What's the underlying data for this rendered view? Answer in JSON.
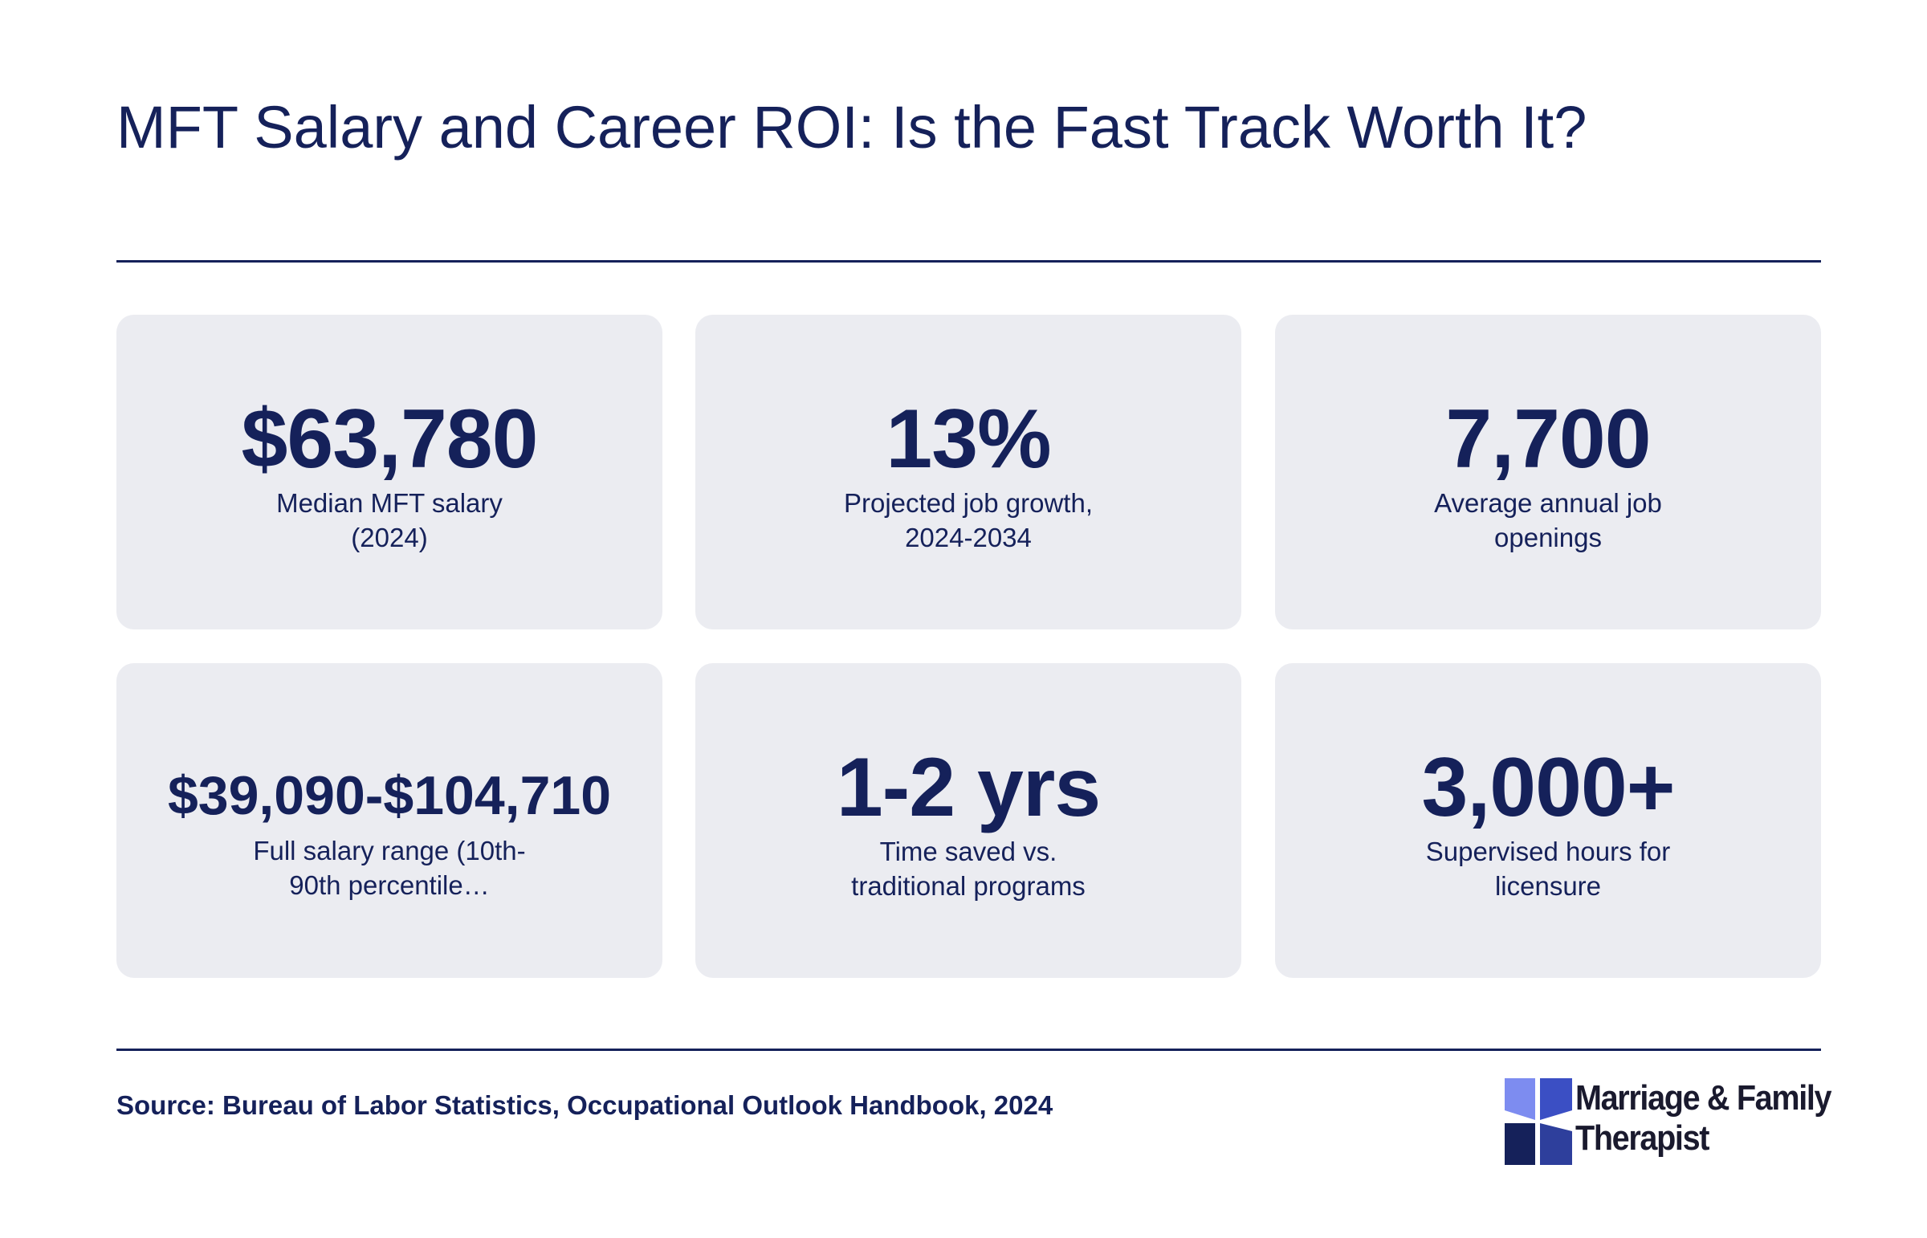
{
  "header": {
    "title": "MFT Salary and Career ROI: Is the Fast Track Worth It?"
  },
  "cards": [
    {
      "value": "$63,780",
      "label": "Median MFT salary (2024)"
    },
    {
      "value": "13%",
      "label": "Projected job growth, 2024-2034"
    },
    {
      "value": "7,700",
      "label": "Average annual job openings"
    },
    {
      "value": "$39,090-$104,710",
      "label": "Full salary range (10th-90th percentile…"
    },
    {
      "value": "1-2 yrs",
      "label": "Time saved vs. traditional programs"
    },
    {
      "value": "3,000+",
      "label": "Supervised hours for licensure"
    }
  ],
  "footer": {
    "source": "Source: Bureau of Labor Statistics, Occupational Outlook Handbook, 2024",
    "logo": [
      "Marriage & Family",
      "Therapist"
    ]
  }
}
